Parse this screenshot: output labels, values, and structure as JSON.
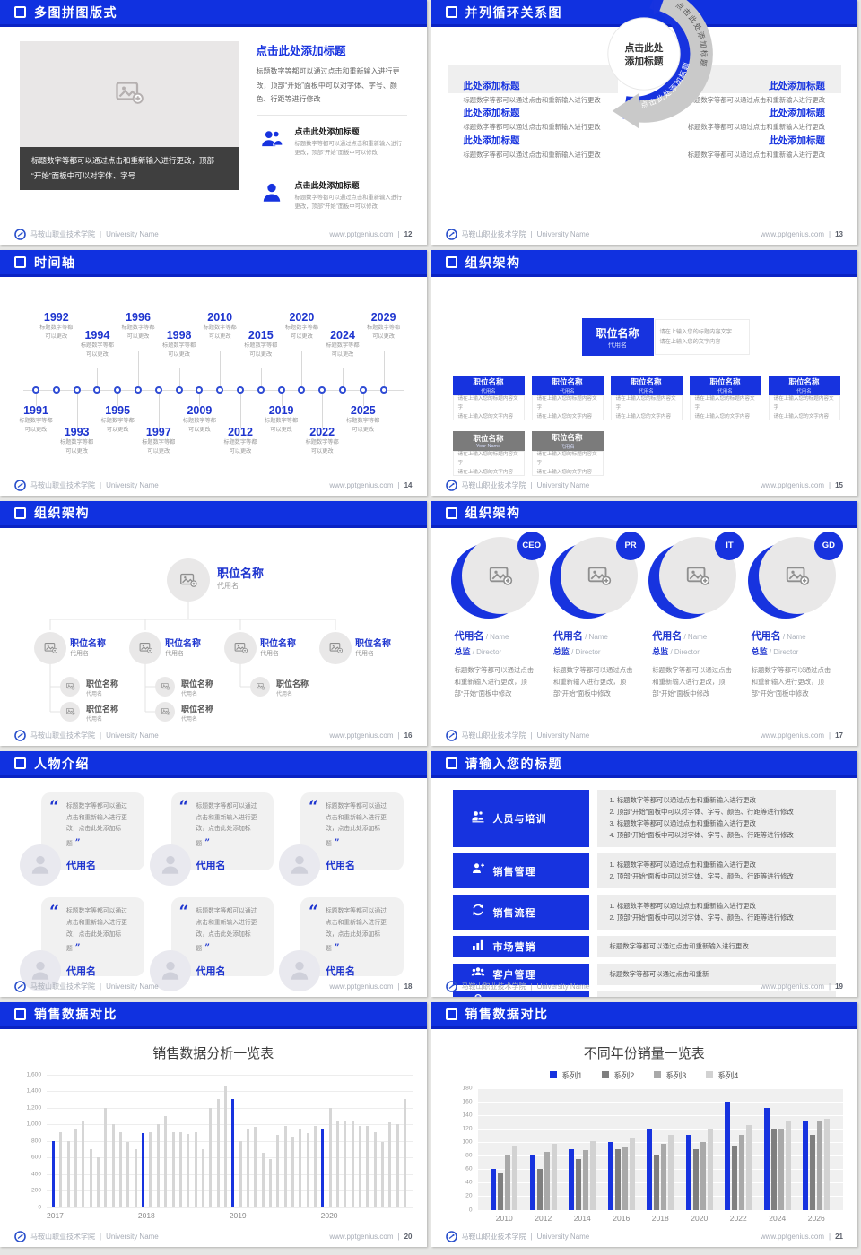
{
  "footer": {
    "org": "马鞍山职业技术学院",
    "sep": "|",
    "org_en": "University Name",
    "site": "www.pptgenius.com"
  },
  "slides": {
    "collage": {
      "page": "12",
      "title": "多图拼图版式",
      "caption_l1": "标题数字等都可以通过点击和重新输入进行更改，顶部",
      "caption_l2": "“开始”面板中可以对字体、字号",
      "right_title": "点击此处添加标题",
      "right_body": "标题数字等都可以通过点击和重新输入进行更改，顶部“开始”面板中可以对字体、字号、颜色、行距等进行修改",
      "items": [
        {
          "icon": "people-icon",
          "title": "点击此处添加标题",
          "note": "标题数字等都可以通过点击和重新输入进行更改，顶部“开始”面板中可以修改"
        },
        {
          "icon": "person-icon",
          "title": "点击此处添加标题",
          "note": "标题数字等都可以通过点击和重新输入进行更改，顶部“开始”面板中可以修改"
        }
      ]
    },
    "cycle": {
      "page": "13",
      "title": "并列循环关系图",
      "center_l1": "点击此处",
      "center_l2": "添加标题",
      "arc_label_left": "点击此处添加标题",
      "arc_label_right": "点击此处添加标题",
      "entry_title": "此处添加标题",
      "entry_text": "标题数字等都可以通过点击和重新输入进行更改",
      "left_count": 3,
      "right_count": 3
    },
    "timeline": {
      "page": "14",
      "title": "时间轴",
      "note_l1": "标题数字等都",
      "note_l2": "可以更改",
      "items": [
        {
          "year": "1991",
          "side": "down",
          "level": 1
        },
        {
          "year": "1992",
          "side": "up",
          "level": 1
        },
        {
          "year": "1993",
          "side": "down",
          "level": 2
        },
        {
          "year": "1994",
          "side": "up",
          "level": 2
        },
        {
          "year": "1995",
          "side": "down",
          "level": 1
        },
        {
          "year": "1996",
          "side": "up",
          "level": 1
        },
        {
          "year": "1997",
          "side": "down",
          "level": 2
        },
        {
          "year": "1998",
          "side": "up",
          "level": 2
        },
        {
          "year": "2009",
          "side": "down",
          "level": 1
        },
        {
          "year": "2010",
          "side": "up",
          "level": 1
        },
        {
          "year": "2012",
          "side": "down",
          "level": 2
        },
        {
          "year": "2015",
          "side": "up",
          "level": 2
        },
        {
          "year": "2019",
          "side": "down",
          "level": 1
        },
        {
          "year": "2020",
          "side": "up",
          "level": 1
        },
        {
          "year": "2022",
          "side": "down",
          "level": 2
        },
        {
          "year": "2024",
          "side": "up",
          "level": 2
        },
        {
          "year": "2025",
          "side": "down",
          "level": 1
        },
        {
          "year": "2029",
          "side": "up",
          "level": 1
        }
      ]
    },
    "org_boxes": {
      "page": "15",
      "title": "组织架构",
      "root": {
        "title": "职位名称",
        "sub": "代用名"
      },
      "root_desc_l1": "请在上输入您的标题内容文字",
      "root_desc_l2": "请在上输入您的文字内容",
      "body_l1": "请在上输入您的标题内容文字",
      "body_l2": "请在上输入您的文字内容",
      "row1": [
        {
          "title": "职位名称",
          "sub": "代用名"
        },
        {
          "title": "职位名称",
          "sub": "代用名"
        },
        {
          "title": "职位名称",
          "sub": "代用名"
        },
        {
          "title": "职位名称",
          "sub": "代用名"
        },
        {
          "title": "职位名称",
          "sub": "代用名"
        }
      ],
      "row2": [
        {
          "title": "职位名称",
          "sub": "Your Name"
        },
        {
          "title": "职位名称",
          "sub": "代用名"
        }
      ]
    },
    "org_tree": {
      "page": "16",
      "title": "组织架构",
      "root": {
        "title": "职位名称",
        "sub": "代用名"
      },
      "children": [
        {
          "title": "职位名称",
          "sub": "代用名",
          "subs": 2
        },
        {
          "title": "职位名称",
          "sub": "代用名",
          "subs": 2
        },
        {
          "title": "职位名称",
          "sub": "代用名",
          "subs": 1
        },
        {
          "title": "职位名称",
          "sub": "代用名",
          "subs": 0
        }
      ],
      "sub_title": "职位名称",
      "sub_sub": "代用名"
    },
    "org_profiles": {
      "page": "17",
      "title": "组织架构",
      "badges": [
        "CEO",
        "PR",
        "IT",
        "GD"
      ],
      "name_cn": "代用名",
      "name_en": " / Name",
      "role_cn": "总监",
      "role_en": " /  Director",
      "para": "标题数字等都可以通过点击和重新输入进行更改，顶部“开始”面板中修改"
    },
    "people": {
      "page": "18",
      "title": "人物介绍",
      "open_quote": "“",
      "close_quote": "”",
      "quote": "标题数字等都可以通过点击和重新输入进行更改，点击此处添加标题",
      "name": "代用名",
      "count": 6
    },
    "agenda": {
      "page": "19",
      "title": "请输入您的标题",
      "rows": [
        {
          "icon": "training-icon",
          "label": "人员与培训",
          "lines": [
            "1.  标题数字等都可以通过点击和重新输入进行更改",
            "2.  顶部“开始”面板中可以对字体、字号、颜色、行距等进行修改",
            "3.  标题数字等都可以通过点击和重新输入进行更改",
            "4.  顶部“开始”面板中可以对字体、字号、颜色、行距等进行修改"
          ]
        },
        {
          "icon": "sales-icon",
          "label": "销售管理",
          "lines": [
            "1.  标题数字等都可以通过点击和重新输入进行更改",
            "2.  顶部“开始”面板中可以对字体、字号、颜色、行距等进行修改"
          ]
        },
        {
          "icon": "process-icon",
          "label": "销售流程",
          "lines": [
            "1.  标题数字等都可以通过点击和重新输入进行更改",
            "2.  顶部“开始”面板中可以对字体、字号、颜色、行距等进行修改"
          ]
        },
        {
          "icon": "marketing-icon",
          "label": "市场营销",
          "lines": [
            "标题数字等都可以通过点击和重新输入进行更改"
          ]
        },
        {
          "icon": "customers-icon",
          "label": "客户管理",
          "lines": [
            "标题数字等都可以通过点击和重新"
          ]
        },
        {
          "icon": "finance-icon",
          "label": "金融项目",
          "lines": [
            "标题数字等都可以通过点击"
          ]
        }
      ]
    },
    "chart_single": {
      "page": "20",
      "title": "销售数据对比"
    },
    "chart_grouped": {
      "page": "21",
      "title": "销售数据对比"
    }
  },
  "chart_data": [
    {
      "type": "bar",
      "title": "销售数据分析一览表",
      "categories": [
        "2017",
        "2018",
        "2019",
        "2020"
      ],
      "groups": [
        [
          800,
          900,
          800,
          950,
          1030,
          700,
          600,
          1200,
          1000,
          900,
          780,
          700
        ],
        [
          890,
          900,
          1000,
          1100,
          900,
          900,
          880,
          900,
          700,
          1200,
          1300,
          1450
        ],
        [
          1300,
          800,
          950,
          970,
          660,
          580,
          870,
          980,
          850,
          950,
          890,
          980
        ],
        [
          950,
          1200,
          1030,
          1040,
          1030,
          980,
          980,
          900,
          780,
          1020,
          1000,
          1300
        ]
      ],
      "accent_color": "#1733df",
      "bar_color": "#d6d6d6",
      "ylim": [
        0,
        1600
      ],
      "yticks": [
        "0",
        "200",
        "400",
        "600",
        "800",
        "1,000",
        "1,200",
        "1,400",
        "1,600"
      ],
      "grid": true,
      "legend": "none"
    },
    {
      "type": "bar",
      "title": "不同年份销量一览表",
      "categories": [
        "2010",
        "2012",
        "2014",
        "2016",
        "2018",
        "2020",
        "2022",
        "2024",
        "2026"
      ],
      "series": [
        {
          "name": "系列1",
          "color": "#1733df",
          "values": [
            60,
            80,
            90,
            100,
            120,
            110,
            160,
            150,
            130
          ]
        },
        {
          "name": "系列2",
          "color": "#7f7f7f",
          "values": [
            55,
            60,
            75,
            90,
            80,
            90,
            95,
            120,
            110
          ]
        },
        {
          "name": "系列3",
          "color": "#a9a9a9",
          "values": [
            80,
            85,
            88,
            92,
            97,
            100,
            110,
            120,
            130
          ]
        },
        {
          "name": "系列4",
          "color": "#d2d2d2",
          "values": [
            95,
            98,
            102,
            105,
            110,
            120,
            125,
            130,
            135
          ]
        }
      ],
      "ylim": [
        0,
        180
      ],
      "yticks": [
        "0",
        "20",
        "40",
        "60",
        "80",
        "100",
        "120",
        "140",
        "160",
        "180"
      ],
      "grid": true,
      "legend": "top",
      "plot_bg": "#f0f0f0"
    }
  ]
}
